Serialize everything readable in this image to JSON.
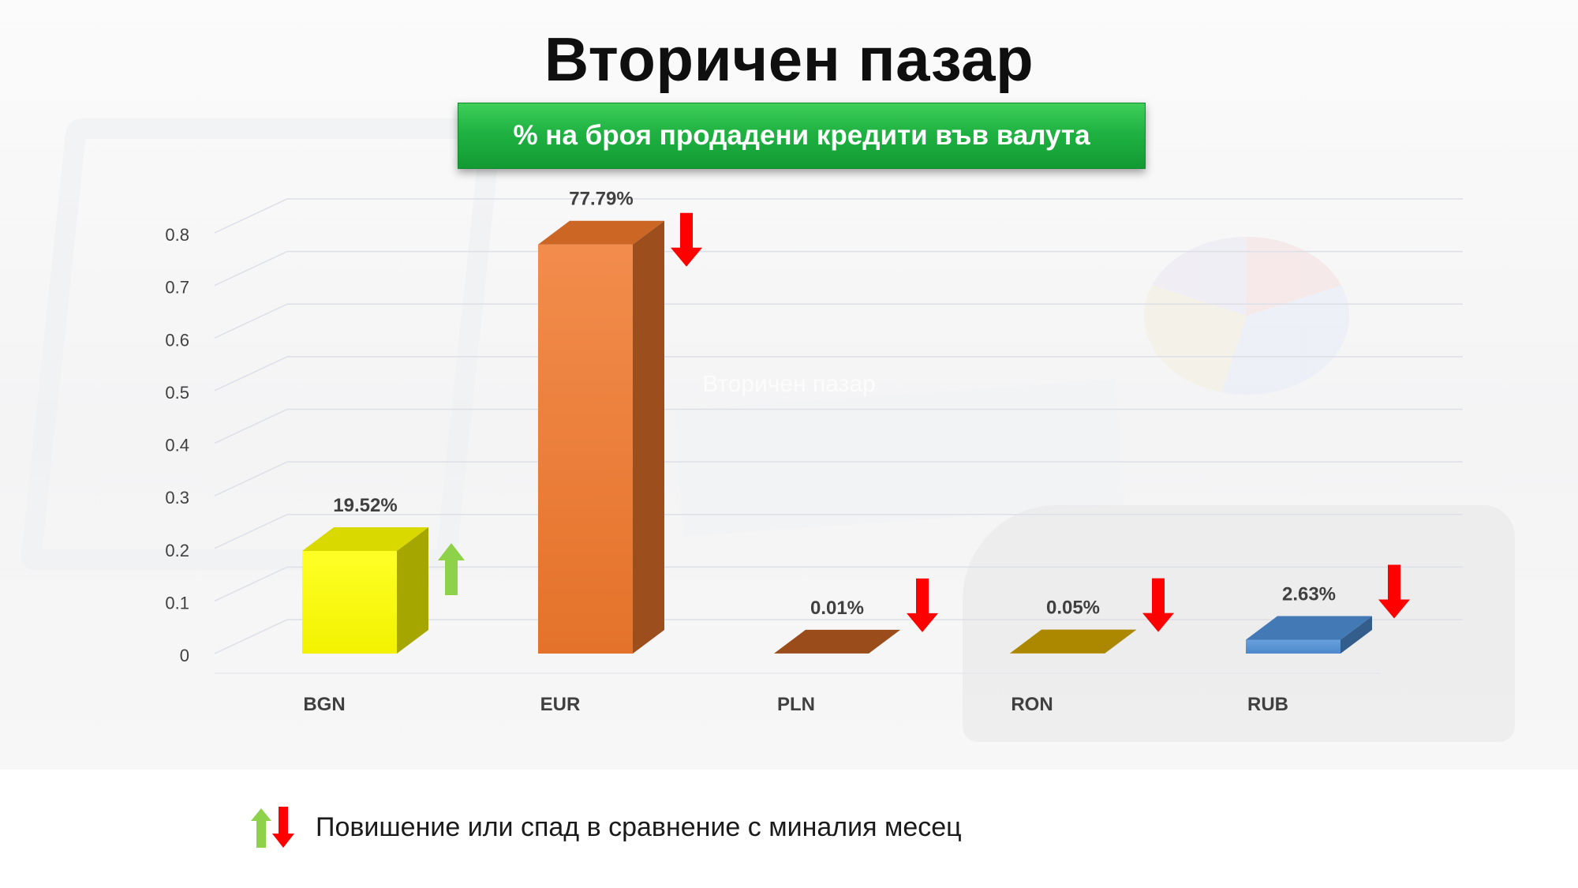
{
  "page": {
    "title": "Вторичен пазар",
    "subtitle": "% на броя продадени кредити във валута"
  },
  "chart_data": {
    "type": "bar",
    "title": "Вторичен пазар",
    "subtitle": "% на броя продадени кредити във валута",
    "categories": [
      "BGN",
      "EUR",
      "PLN",
      "RON",
      "RUB"
    ],
    "values": [
      0.1952,
      0.7779,
      0.0001,
      0.0005,
      0.0263
    ],
    "data_labels": [
      "19.52%",
      "77.79%",
      "0.01%",
      "0.05%",
      "2.63%"
    ],
    "colors": [
      "#ffff00",
      "#f0782c",
      "#b55a1e",
      "#c9a000",
      "#4f8fd6"
    ],
    "trends": [
      "up",
      "down",
      "down",
      "down",
      "down"
    ],
    "yticks": [
      "0",
      "0.1",
      "0.2",
      "0.3",
      "0.4",
      "0.5",
      "0.6",
      "0.7",
      "0.8"
    ],
    "ylim": [
      0,
      0.8
    ],
    "grid": true,
    "style": "3d-column",
    "watermark": "Вторичен пазар"
  },
  "legend": {
    "text": "Повишение или спад в сравнение с миналия месец",
    "icons": [
      "arrow-up-icon",
      "arrow-down-icon"
    ],
    "up_color": "#8ed24a",
    "down_color": "#ff0000"
  }
}
